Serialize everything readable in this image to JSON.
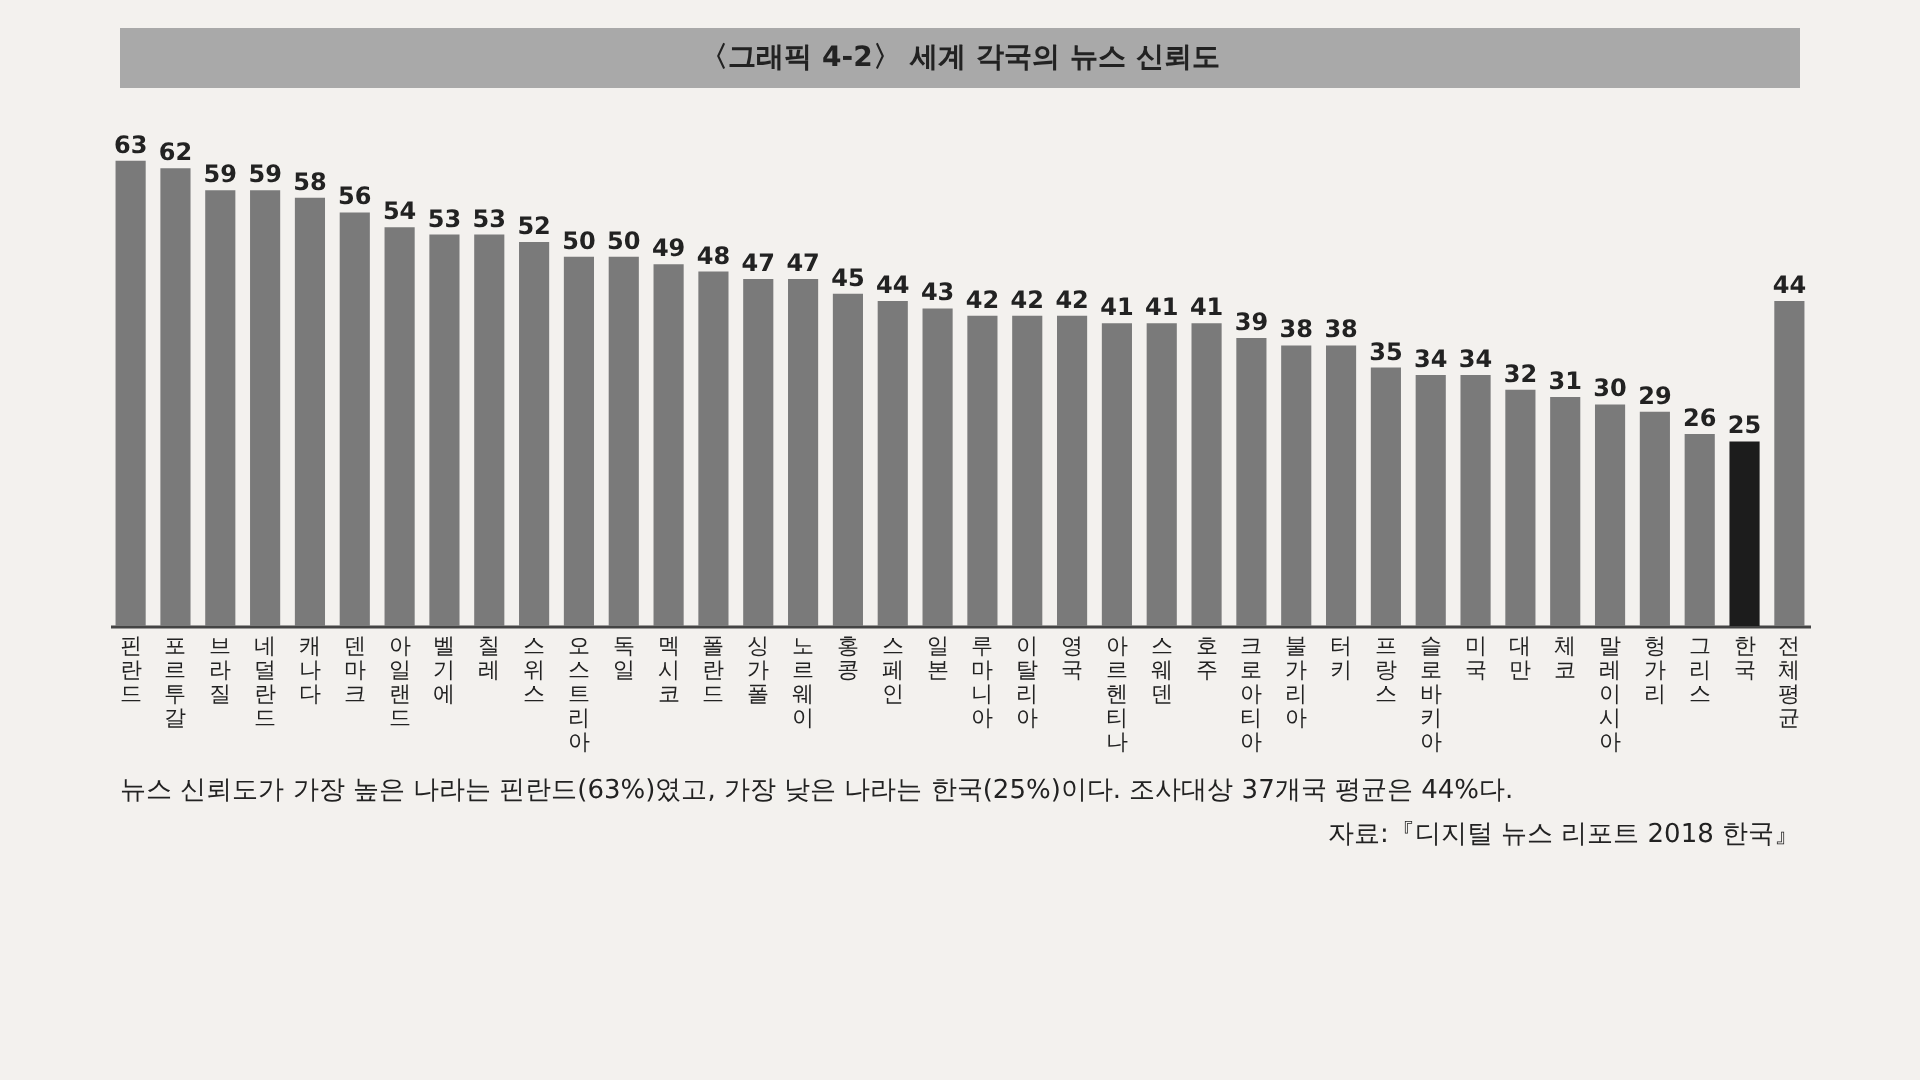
{
  "chart_data": {
    "type": "bar",
    "title": "〈그래픽 4-2〉 세계 각국의 뉴스 신뢰도",
    "categories": [
      "핀란드",
      "포르투갈",
      "브라질",
      "네덜란드",
      "캐나다",
      "덴마크",
      "아일랜드",
      "벨기에",
      "칠레",
      "스위스",
      "오스트리아",
      "독일",
      "멕시코",
      "폴란드",
      "싱가폴",
      "노르웨이",
      "홍콩",
      "스페인",
      "일본",
      "루마니아",
      "이탈리아",
      "영국",
      "아르헨티나",
      "스웨덴",
      "호주",
      "크로아티아",
      "불가리아",
      "터키",
      "프랑스",
      "슬로바키아",
      "미국",
      "대만",
      "체코",
      "말레이시아",
      "헝가리",
      "그리스",
      "한국",
      "전체 평균"
    ],
    "values": [
      63,
      62,
      59,
      59,
      58,
      56,
      54,
      53,
      53,
      52,
      50,
      50,
      49,
      48,
      47,
      47,
      45,
      44,
      43,
      42,
      42,
      42,
      41,
      41,
      41,
      39,
      38,
      38,
      35,
      34,
      34,
      32,
      31,
      30,
      29,
      26,
      25,
      44
    ],
    "colors": [
      "#7a7a7a",
      "#7a7a7a",
      "#7a7a7a",
      "#7a7a7a",
      "#7a7a7a",
      "#7a7a7a",
      "#7a7a7a",
      "#7a7a7a",
      "#7a7a7a",
      "#7a7a7a",
      "#7a7a7a",
      "#7a7a7a",
      "#7a7a7a",
      "#7a7a7a",
      "#7a7a7a",
      "#7a7a7a",
      "#7a7a7a",
      "#7a7a7a",
      "#7a7a7a",
      "#7a7a7a",
      "#7a7a7a",
      "#7a7a7a",
      "#7a7a7a",
      "#7a7a7a",
      "#7a7a7a",
      "#7a7a7a",
      "#7a7a7a",
      "#7a7a7a",
      "#7a7a7a",
      "#7a7a7a",
      "#7a7a7a",
      "#7a7a7a",
      "#7a7a7a",
      "#7a7a7a",
      "#7a7a7a",
      "#7a7a7a",
      "#1c1c1c",
      "#7a7a7a"
    ],
    "data_labels": true,
    "grid": false,
    "legend": false,
    "annotations": [
      "뉴스 신뢰도가 가장 높은 나라는 핀란드(63%)였고, 가장 낮은 나라는 한국(25%)이다. 조사대상 37개국 평균은 44%다.",
      "자료:『디지털 뉴스 리포트 2018 한국』"
    ]
  }
}
